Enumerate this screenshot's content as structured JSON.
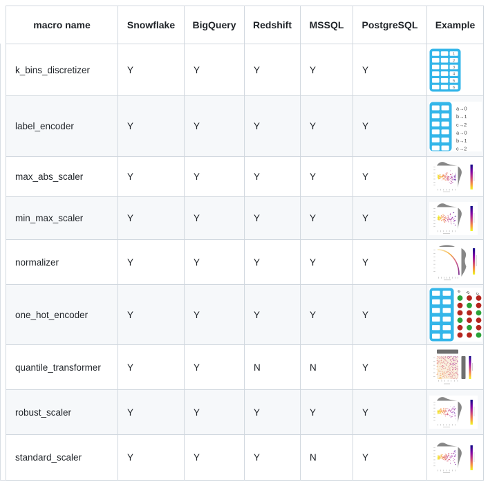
{
  "table": {
    "columns": [
      {
        "key": "macro_name",
        "label": "macro name"
      },
      {
        "key": "snowflake",
        "label": "Snowflake"
      },
      {
        "key": "bigquery",
        "label": "BigQuery"
      },
      {
        "key": "redshift",
        "label": "Redshift"
      },
      {
        "key": "mssql",
        "label": "MSSQL"
      },
      {
        "key": "postgresql",
        "label": "PostgreSQL"
      },
      {
        "key": "example",
        "label": "Example"
      }
    ],
    "rows": [
      {
        "macro_name": "k_bins_discretizer",
        "snowflake": "Y",
        "bigquery": "Y",
        "redshift": "Y",
        "mssql": "Y",
        "postgresql": "Y",
        "example": {
          "type": "binned_table",
          "icon_name": "binned-table-example-image",
          "bin_labels": [
            "1",
            "2",
            "3",
            "4",
            "5",
            "6"
          ]
        }
      },
      {
        "macro_name": "label_encoder",
        "snowflake": "Y",
        "bigquery": "Y",
        "redshift": "Y",
        "mssql": "Y",
        "postgresql": "Y",
        "example": {
          "type": "label_map_table",
          "icon_name": "label-encoder-mapping-example-image",
          "mappings": [
            "a→0",
            "b→1",
            "c→2",
            "a→0",
            "b→1",
            "c→2"
          ]
        }
      },
      {
        "macro_name": "max_abs_scaler",
        "snowflake": "Y",
        "bigquery": "Y",
        "redshift": "Y",
        "mssql": "Y",
        "postgresql": "Y",
        "example": {
          "type": "jointplot_scatter",
          "icon_name": "scatter-jointplot-example-image"
        }
      },
      {
        "macro_name": "min_max_scaler",
        "snowflake": "Y",
        "bigquery": "Y",
        "redshift": "Y",
        "mssql": "Y",
        "postgresql": "Y",
        "example": {
          "type": "jointplot_scatter",
          "icon_name": "scatter-jointplot-example-image"
        }
      },
      {
        "macro_name": "normalizer",
        "snowflake": "Y",
        "bigquery": "Y",
        "redshift": "Y",
        "mssql": "Y",
        "postgresql": "Y",
        "example": {
          "type": "jointplot_curve",
          "icon_name": "curve-jointplot-example-image"
        }
      },
      {
        "macro_name": "one_hot_encoder",
        "snowflake": "Y",
        "bigquery": "Y",
        "redshift": "Y",
        "mssql": "Y",
        "postgresql": "Y",
        "example": {
          "type": "onehot_table",
          "icon_name": "one-hot-encoded-table-example-image",
          "category_labels": [
            "a",
            "b",
            "c"
          ],
          "encoding": [
            [
              1,
              0,
              0
            ],
            [
              0,
              1,
              0
            ],
            [
              0,
              0,
              1
            ],
            [
              1,
              0,
              0
            ],
            [
              0,
              1,
              0
            ],
            [
              0,
              0,
              1
            ]
          ]
        }
      },
      {
        "macro_name": "quantile_transformer",
        "snowflake": "Y",
        "bigquery": "Y",
        "redshift": "N",
        "mssql": "N",
        "postgresql": "Y",
        "example": {
          "type": "heatmap_jointplot",
          "icon_name": "heatmap-jointplot-example-image"
        }
      },
      {
        "macro_name": "robust_scaler",
        "snowflake": "Y",
        "bigquery": "Y",
        "redshift": "Y",
        "mssql": "Y",
        "postgresql": "Y",
        "example": {
          "type": "jointplot_scatter",
          "icon_name": "scatter-jointplot-example-image"
        }
      },
      {
        "macro_name": "standard_scaler",
        "snowflake": "Y",
        "bigquery": "Y",
        "redshift": "Y",
        "mssql": "N",
        "postgresql": "Y",
        "example": {
          "type": "jointplot_scatter",
          "icon_name": "scatter-jointplot-example-image"
        }
      }
    ],
    "colors": {
      "accent_cyan": "#34b6e9",
      "cell_white": "#ffffff",
      "dot_green": "#2aa238",
      "dot_red": "#b5251e",
      "histogram_gray": "#7d7d7d",
      "colormap": [
        "#0d0887",
        "#8606a6",
        "#cc4778",
        "#f89441",
        "#f0f921"
      ],
      "row_alt_background": "#f6f8fa",
      "grid_border": "#d0d7de",
      "text": "#1f2328"
    }
  }
}
